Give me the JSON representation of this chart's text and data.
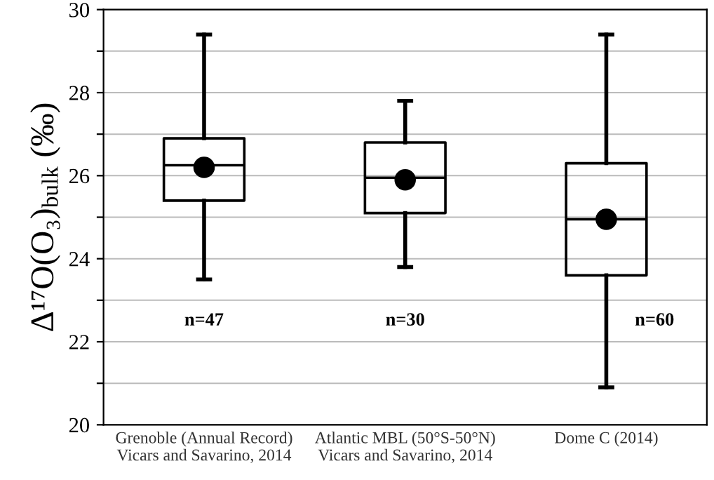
{
  "chart_data": {
    "type": "box",
    "ylabel": "Δ¹⁷O(O₃)$_{bulk}$ (‰)",
    "categories": [
      "Grenoble (Annual Record)\nVicars and Savarino, 2014",
      "Atlantic MBL (50°S-50°N)\nVicars and Savarino, 2014",
      "Dome C (2014)"
    ],
    "boxes": [
      {
        "low": 23.5,
        "q1": 25.4,
        "median": 26.25,
        "q3": 26.9,
        "high": 29.4,
        "mean": 26.2
      },
      {
        "low": 23.8,
        "q1": 25.1,
        "median": 25.95,
        "q3": 26.8,
        "high": 27.8,
        "mean": 25.9
      },
      {
        "low": 20.9,
        "q1": 23.6,
        "median": 24.95,
        "q3": 26.3,
        "high": 29.4,
        "mean": 24.95
      }
    ],
    "color": "#000000",
    "ylim": [
      20,
      30
    ],
    "yticks": [
      20,
      {
        "value": 21,
        "label": null
      },
      22,
      {
        "value": 23,
        "label": null
      },
      24,
      {
        "value": 25,
        "label": null
      },
      26,
      {
        "value": 27,
        "label": null
      },
      28,
      {
        "value": 29,
        "label": null
      },
      30
    ],
    "grid": "y",
    "annotations": [
      "n=47",
      "n=30",
      "n=60"
    ]
  }
}
